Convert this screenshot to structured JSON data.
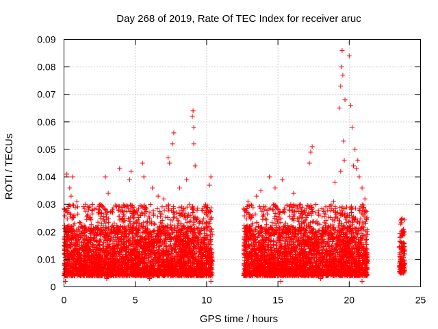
{
  "chart_data": {
    "type": "scatter",
    "title": "Day 268 of 2019, Rate Of TEC Index for receiver aruc",
    "xlabel": "GPS time / hours",
    "ylabel": "ROTI / TECUs",
    "xlim": [
      0,
      25
    ],
    "ylim": [
      0,
      0.09
    ],
    "x_ticks": [
      0,
      5,
      10,
      15,
      20,
      25
    ],
    "y_ticks": [
      0,
      0.01,
      0.02,
      0.03,
      0.04,
      0.05,
      0.06,
      0.07,
      0.08,
      0.09
    ],
    "x_tick_labels": [
      "0",
      "5",
      "10",
      "15",
      "20",
      "25"
    ],
    "y_tick_labels": [
      "0",
      "0.01",
      "0.02",
      "0.03",
      "0.04",
      "0.05",
      "0.06",
      "0.07",
      "0.08",
      "0.09"
    ],
    "grid": true,
    "marker": "plus",
    "color": "#ff0000",
    "data_segments": [
      {
        "x_range": [
          0.0,
          10.4
        ],
        "typical": [
          0.004,
          0.022
        ],
        "upper": 0.03
      },
      {
        "x_range": [
          12.6,
          21.3
        ],
        "typical": [
          0.004,
          0.022
        ],
        "upper": 0.03
      },
      {
        "x_range": [
          23.5,
          23.9
        ],
        "typical": [
          0.005,
          0.02
        ],
        "upper": 0.025
      }
    ],
    "points": [
      [
        0.2,
        0.041
      ],
      [
        0.4,
        0.036
      ],
      [
        0.6,
        0.04
      ],
      [
        0.9,
        0.031
      ],
      [
        1.5,
        0.03
      ],
      [
        2.0,
        0.028
      ],
      [
        2.9,
        0.04
      ],
      [
        3.1,
        0.034
      ],
      [
        3.9,
        0.043
      ],
      [
        4.6,
        0.039
      ],
      [
        4.7,
        0.042
      ],
      [
        5.6,
        0.04
      ],
      [
        5.5,
        0.045
      ],
      [
        6.2,
        0.036
      ],
      [
        7.0,
        0.032
      ],
      [
        7.4,
        0.045
      ],
      [
        7.6,
        0.052
      ],
      [
        7.7,
        0.056
      ],
      [
        8.1,
        0.036
      ],
      [
        8.6,
        0.039
      ],
      [
        9.0,
        0.062
      ],
      [
        9.05,
        0.064
      ],
      [
        9.1,
        0.058
      ],
      [
        9.2,
        0.044
      ],
      [
        8.8,
        0.03
      ],
      [
        10.3,
        0.04
      ],
      [
        10.2,
        0.037
      ],
      [
        12.9,
        0.031
      ],
      [
        13.8,
        0.035
      ],
      [
        14.4,
        0.04
      ],
      [
        14.8,
        0.036
      ],
      [
        15.3,
        0.039
      ],
      [
        16.1,
        0.034
      ],
      [
        16.6,
        0.03
      ],
      [
        17.3,
        0.049
      ],
      [
        17.4,
        0.051
      ],
      [
        17.2,
        0.045
      ],
      [
        18.2,
        0.028
      ],
      [
        19.3,
        0.065
      ],
      [
        19.4,
        0.073
      ],
      [
        19.45,
        0.08
      ],
      [
        19.5,
        0.086
      ],
      [
        19.55,
        0.077
      ],
      [
        19.6,
        0.053
      ],
      [
        19.65,
        0.046
      ],
      [
        19.7,
        0.068
      ],
      [
        19.4,
        0.042
      ],
      [
        20.0,
        0.084
      ],
      [
        20.1,
        0.066
      ],
      [
        20.2,
        0.058
      ],
      [
        20.4,
        0.05
      ],
      [
        20.5,
        0.043
      ],
      [
        20.6,
        0.046
      ],
      [
        20.7,
        0.04
      ],
      [
        20.9,
        0.036
      ],
      [
        21.1,
        0.032
      ],
      [
        23.7,
        0.025
      ],
      [
        23.6,
        0.024
      ],
      [
        23.8,
        0.021
      ],
      [
        9.1,
        0.052
      ],
      [
        7.3,
        0.047
      ],
      [
        0.5,
        0.033
      ],
      [
        2.4,
        0.027
      ],
      [
        6.6,
        0.033
      ],
      [
        10.0,
        0.029
      ],
      [
        13.5,
        0.033
      ],
      [
        15.9,
        0.03
      ],
      [
        18.9,
        0.031
      ],
      [
        19.0,
        0.038
      ],
      [
        20.3,
        0.044
      ],
      [
        0.1,
        0.002
      ],
      [
        10.3,
        0.002
      ],
      [
        15.2,
        0.002
      ],
      [
        18.0,
        0.003
      ],
      [
        20.9,
        0.002
      ],
      [
        3.0,
        0.003
      ],
      [
        6.0,
        0.003
      ],
      [
        12.7,
        0.004
      ]
    ]
  }
}
